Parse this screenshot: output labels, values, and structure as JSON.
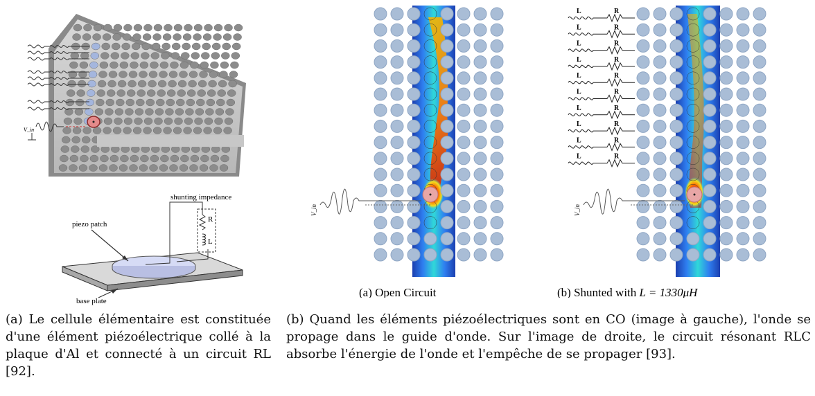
{
  "left_figure": {
    "lattice_alt": "Plaque avec réseau de cylindres piézoélectriques et circuits RL",
    "source_label": "V_in",
    "cell_diagram": {
      "shunting_label": "shunting impedance",
      "piezo_label": "piezo patch",
      "base_label": "base plate",
      "r_label": "R",
      "l_label": "L"
    }
  },
  "right_figures": {
    "open_circuit": {
      "caption": "(a)  Open Circuit",
      "source_label": "V_in"
    },
    "shunted": {
      "caption_prefix": "(b)  Shunted with ",
      "caption_math": "L = 1330μH",
      "source_label": "V_in",
      "l_label": "L",
      "r_label": "R"
    }
  },
  "captions": {
    "a": "(a) Le cellule élémentaire est constituée d'une élément piézoélectrique collé à la plaque d'Al et connecté à un circuit RL [92].",
    "b": "(b) Quand les éléments piézoélectriques sont en CO (image à gauche), l'onde se propage dans le guide d'onde. Sur l'image de droite, le circuit résonant RLC absorbe l'énergie de l'onde et l'empêche de se propager [93]."
  },
  "colors": {
    "dot": "#a9bdd6",
    "dot_edge": "#8fa6c4",
    "highlight": "#e48a8a",
    "plate": "#9a9a9a"
  }
}
